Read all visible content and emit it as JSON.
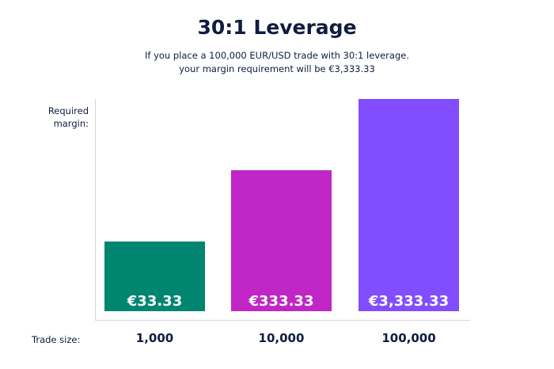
{
  "header": {
    "title": "30:1 Leverage",
    "subtitle_line1": "If you place a 100,000 EUR/USD trade with 30:1 leverage.",
    "subtitle_line2": "your margin requirement will be €3,333.33"
  },
  "chart_data": {
    "type": "bar",
    "title": "30:1 Leverage",
    "ylabel": "Required margin:",
    "xlabel": "Trade size:",
    "yscale": "log",
    "grid": false,
    "categories": [
      "1,000",
      "10,000",
      "100,000"
    ],
    "values": [
      33.33,
      333.33,
      3333.33
    ],
    "data_labels": [
      "€33.33",
      "€333.33",
      "€3,333.33"
    ],
    "colors": [
      "#008670",
      "#c026c5",
      "#814dff"
    ]
  }
}
